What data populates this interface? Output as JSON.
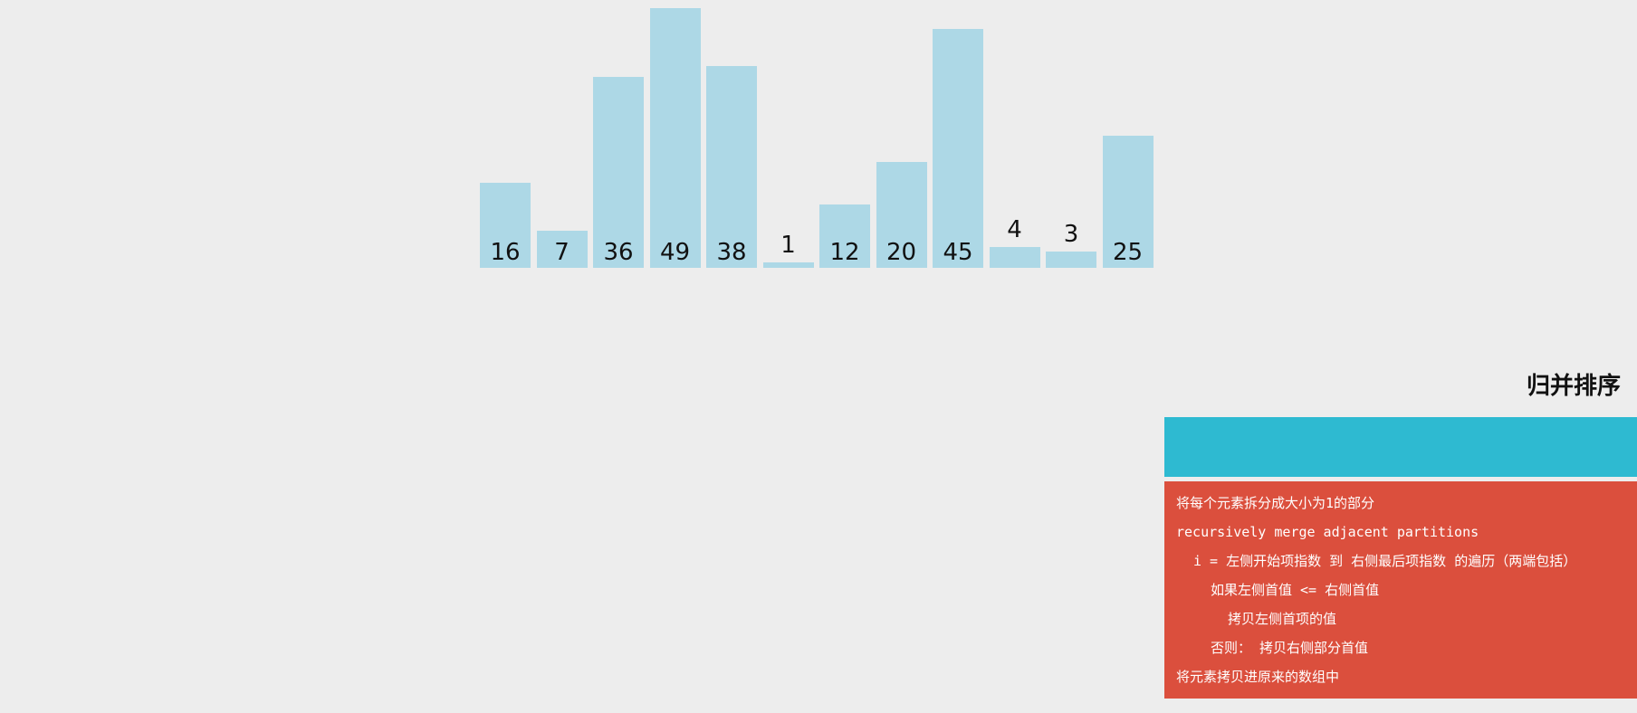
{
  "array": {
    "values": [
      16,
      7,
      36,
      49,
      38,
      1,
      12,
      20,
      45,
      4,
      3,
      25
    ],
    "bar_color": "#add8e6"
  },
  "panel": {
    "title": "归并排序",
    "status_text": "",
    "status_color": "#2ebad1",
    "code_color": "#db4f3d",
    "code_lines": [
      {
        "text": "将每个元素拆分成大小为1的部分",
        "indent": 0
      },
      {
        "text": "recursively merge adjacent partitions",
        "indent": 0
      },
      {
        "text": "i = 左侧开始项指数 到 右侧最后项指数 的遍历（两端包括）",
        "indent": 1
      },
      {
        "text": "如果左侧首值 <= 右侧首值",
        "indent": 2
      },
      {
        "text": "拷贝左侧首项的值",
        "indent": 3
      },
      {
        "text": "否则： 拷贝右侧部分首值",
        "indent": 2
      },
      {
        "text": "将元素拷贝进原来的数组中",
        "indent": 0
      }
    ]
  }
}
